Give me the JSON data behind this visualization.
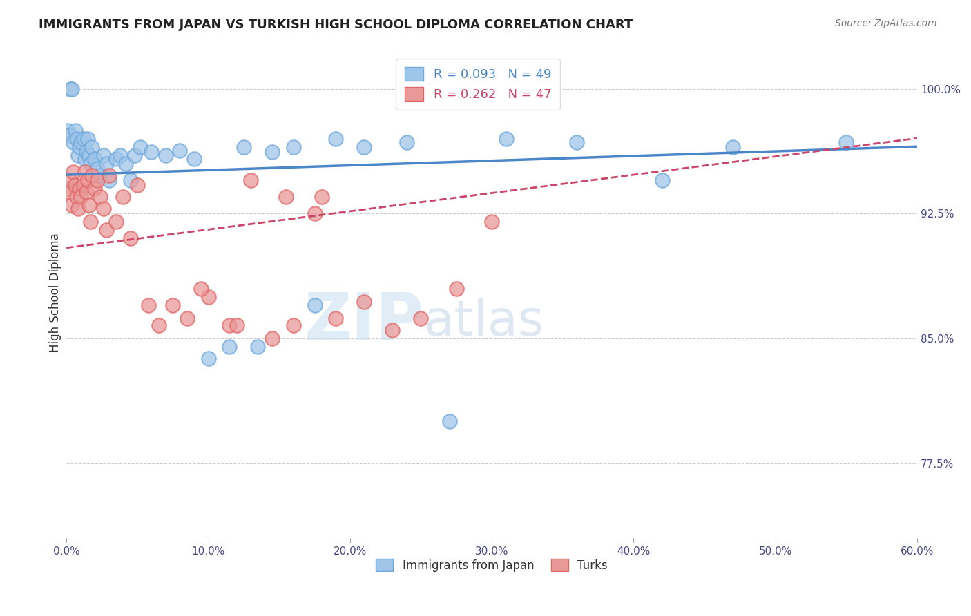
{
  "title": "IMMIGRANTS FROM JAPAN VS TURKISH HIGH SCHOOL DIPLOMA CORRELATION CHART",
  "source": "Source: ZipAtlas.com",
  "ylabel": "High School Diploma",
  "ytick_labels": [
    "77.5%",
    "85.0%",
    "92.5%",
    "100.0%"
  ],
  "ytick_values": [
    0.775,
    0.85,
    0.925,
    1.0
  ],
  "xlim": [
    0.0,
    0.6
  ],
  "ylim": [
    0.73,
    1.025
  ],
  "legend_blue_r": "R = 0.093",
  "legend_blue_n": "N = 49",
  "legend_pink_r": "R = 0.262",
  "legend_pink_n": "N = 47",
  "blue_color": "#9fc5e8",
  "pink_color": "#ea9999",
  "blue_edge_color": "#6fa8dc",
  "pink_edge_color": "#e06666",
  "blue_line_color": "#4a86c8",
  "pink_line_color": "#cc4466",
  "background_color": "#ffffff",
  "watermark_zip": "ZIP",
  "watermark_atlas": "atlas",
  "japan_x": [
    0.001,
    0.002,
    0.003,
    0.004,
    0.005,
    0.006,
    0.007,
    0.008,
    0.009,
    0.01,
    0.012,
    0.013,
    0.014,
    0.015,
    0.016,
    0.017,
    0.018,
    0.02,
    0.022,
    0.024,
    0.026,
    0.028,
    0.03,
    0.035,
    0.038,
    0.042,
    0.045,
    0.048,
    0.052,
    0.06,
    0.07,
    0.08,
    0.09,
    0.1,
    0.115,
    0.125,
    0.135,
    0.145,
    0.16,
    0.175,
    0.19,
    0.21,
    0.24,
    0.27,
    0.31,
    0.36,
    0.42,
    0.47,
    0.55
  ],
  "japan_y": [
    0.975,
    0.972,
    1.0,
    1.0,
    0.968,
    0.975,
    0.97,
    0.96,
    0.965,
    0.968,
    0.97,
    0.958,
    0.962,
    0.97,
    0.96,
    0.955,
    0.965,
    0.958,
    0.952,
    0.948,
    0.96,
    0.955,
    0.945,
    0.958,
    0.96,
    0.955,
    0.945,
    0.96,
    0.965,
    0.962,
    0.96,
    0.963,
    0.958,
    0.838,
    0.845,
    0.965,
    0.845,
    0.962,
    0.965,
    0.87,
    0.97,
    0.965,
    0.968,
    0.8,
    0.97,
    0.968,
    0.945,
    0.965,
    0.968
  ],
  "turks_x": [
    0.001,
    0.002,
    0.003,
    0.004,
    0.005,
    0.006,
    0.007,
    0.008,
    0.009,
    0.01,
    0.012,
    0.013,
    0.014,
    0.015,
    0.016,
    0.017,
    0.018,
    0.02,
    0.022,
    0.024,
    0.026,
    0.028,
    0.03,
    0.035,
    0.04,
    0.045,
    0.05,
    0.058,
    0.065,
    0.075,
    0.085,
    0.1,
    0.115,
    0.13,
    0.145,
    0.16,
    0.175,
    0.19,
    0.21,
    0.23,
    0.25,
    0.275,
    0.3,
    0.18,
    0.095,
    0.12,
    0.155
  ],
  "turks_y": [
    0.94,
    0.938,
    0.945,
    0.93,
    0.95,
    0.942,
    0.935,
    0.928,
    0.94,
    0.935,
    0.942,
    0.95,
    0.938,
    0.945,
    0.93,
    0.92,
    0.948,
    0.94,
    0.945,
    0.935,
    0.928,
    0.915,
    0.948,
    0.92,
    0.935,
    0.91,
    0.942,
    0.87,
    0.858,
    0.87,
    0.862,
    0.875,
    0.858,
    0.945,
    0.85,
    0.858,
    0.925,
    0.862,
    0.872,
    0.855,
    0.862,
    0.88,
    0.92,
    0.935,
    0.88,
    0.858,
    0.935
  ]
}
